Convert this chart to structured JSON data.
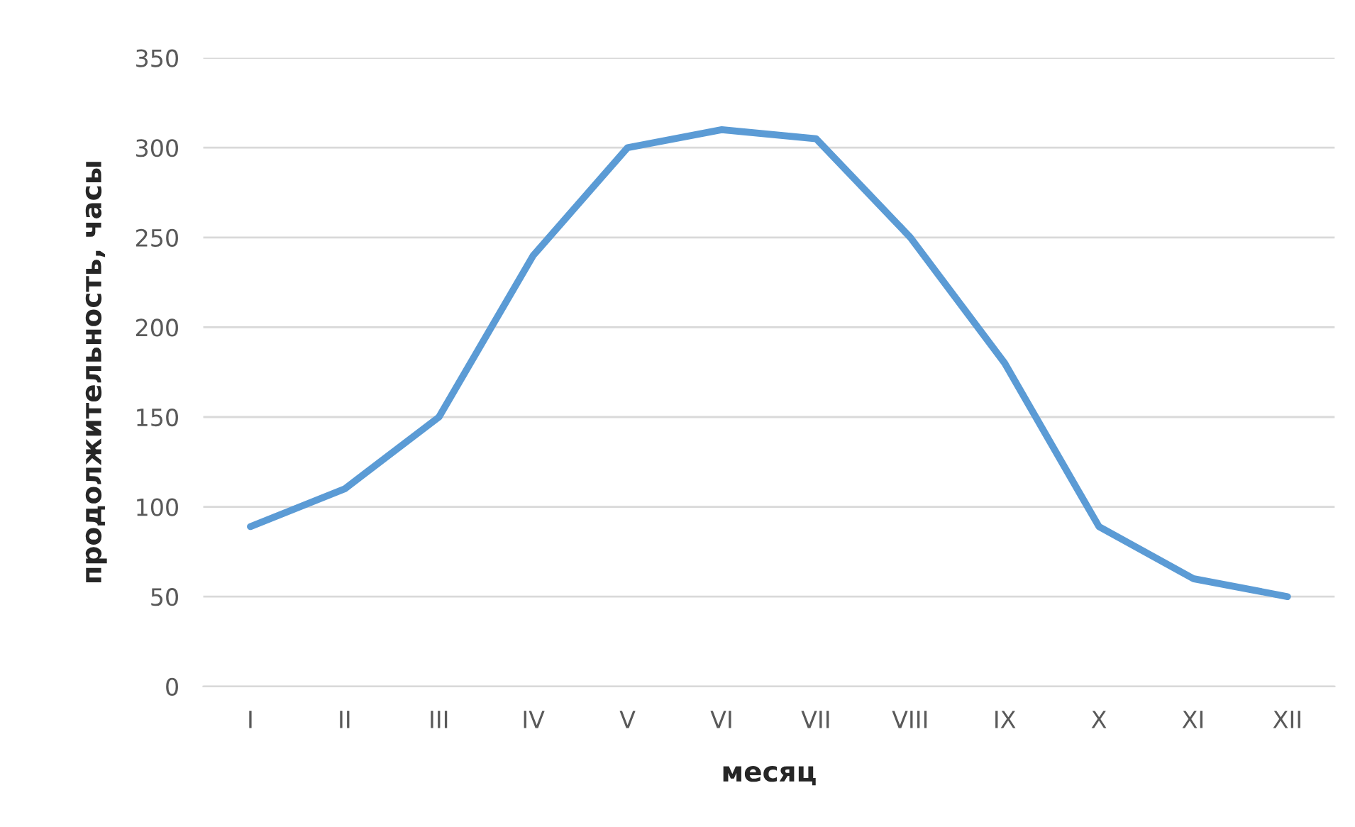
{
  "chart_data": {
    "type": "line",
    "xlabel": "месяц",
    "ylabel": "продолжительность, часы",
    "categories": [
      "I",
      "II",
      "III",
      "IV",
      "V",
      "VI",
      "VII",
      "VIII",
      "IX",
      "X",
      "XI",
      "XII"
    ],
    "series": [
      {
        "color": "#5b9bd5",
        "values": [
          89,
          110,
          150,
          240,
          300,
          310,
          305,
          250,
          180,
          89,
          60,
          50
        ]
      }
    ],
    "ylim": [
      0,
      350
    ],
    "yticks": [
      0,
      50,
      100,
      150,
      200,
      250,
      300,
      350
    ],
    "grid": "y",
    "marker": "none",
    "line_style": "solid"
  }
}
